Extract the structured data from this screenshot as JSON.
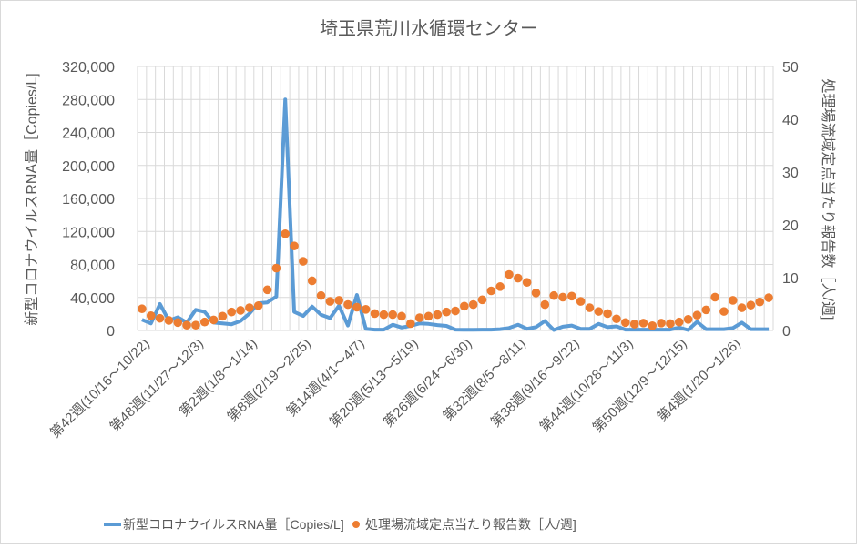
{
  "chart_data": {
    "type": "line",
    "title": "埼玉県荒川水循環センター",
    "ylabel": "新型コロナウイルスRNA量［Copies/L]",
    "y2label": "処理場流域定点当たり報告数［人/週]",
    "ylim": [
      0,
      320000
    ],
    "y2lim": [
      0,
      50
    ],
    "yticks": [
      "0",
      "40,000",
      "80,000",
      "120,000",
      "160,000",
      "200,000",
      "240,000",
      "280,000",
      "320,000"
    ],
    "y2ticks": [
      "0",
      "10",
      "20",
      "30",
      "40",
      "50"
    ],
    "grid": true,
    "legend_position": "bottom",
    "categories": [
      "第42週(10/16～10/22)",
      "",
      "",
      "",
      "",
      "",
      "第48週(11/27～12/3)",
      "",
      "",
      "",
      "",
      "",
      "第2週(1/8～1/14)",
      "",
      "",
      "",
      "",
      "",
      "第8週(2/19～2/25)",
      "",
      "",
      "",
      "",
      "",
      "第14週(4/1～4/7)",
      "",
      "",
      "",
      "",
      "",
      "第20週(5/13～5/19)",
      "",
      "",
      "",
      "",
      "",
      "第26週(6/24～6/30)",
      "",
      "",
      "",
      "",
      "",
      "第32週(8/5～8/11)",
      "",
      "",
      "",
      "",
      "",
      "第38週(9/16～9/22)",
      "",
      "",
      "",
      "",
      "",
      "第44週(10/28～11/3)",
      "",
      "",
      "",
      "",
      "",
      "第50週(12/9～12/15)",
      "",
      "",
      "",
      "",
      "",
      "第4週(1/20～1/26)",
      "",
      "",
      "",
      ""
    ],
    "series": [
      {
        "name": "新型コロナウイルスRNA量［Copies/L]",
        "type": "line",
        "axis": "left",
        "color": "#5b9bd5",
        "values": [
          13000,
          8500,
          32000,
          12000,
          16000,
          9500,
          25000,
          22500,
          9500,
          8500,
          7500,
          11500,
          20500,
          33000,
          34000,
          41000,
          280000,
          22500,
          17500,
          29000,
          19000,
          15000,
          30000,
          6000,
          43000,
          2000,
          1000,
          1000,
          7000,
          3500,
          5500,
          8500,
          8000,
          6500,
          5500,
          1000,
          800,
          800,
          1000,
          1000,
          1500,
          3000,
          7000,
          2000,
          4000,
          11500,
          500,
          4500,
          6000,
          2000,
          2000,
          8000,
          4000,
          5000,
          1000,
          1000,
          1000,
          1000,
          1000,
          1000,
          3500,
          500,
          10500,
          1500,
          1500,
          1500,
          3000,
          9500,
          1500,
          1500,
          1500
        ]
      },
      {
        "name": "処理場流域定点当たり報告数［人/週]",
        "type": "scatter",
        "axis": "right",
        "color": "#ed7d31",
        "values": [
          4.1,
          2.8,
          2.3,
          1.9,
          1.5,
          1.0,
          1.0,
          1.6,
          2.0,
          2.7,
          3.5,
          3.8,
          4.3,
          4.7,
          7.7,
          11.8,
          18.3,
          16.0,
          13.1,
          9.4,
          6.6,
          5.5,
          5.7,
          4.9,
          4.4,
          4.0,
          3.2,
          3.0,
          3.0,
          2.7,
          1.3,
          2.4,
          2.7,
          3.0,
          3.5,
          3.7,
          4.6,
          4.9,
          5.8,
          7.5,
          8.3,
          10.6,
          9.9,
          9.1,
          7.1,
          4.9,
          6.6,
          6.3,
          6.5,
          5.5,
          4.3,
          3.6,
          3.2,
          2.2,
          1.5,
          1.2,
          1.4,
          0.9,
          1.4,
          1.3,
          1.6,
          2.1,
          2.9,
          3.9,
          6.3,
          3.6,
          5.7,
          4.3,
          4.8,
          5.4,
          6.2
        ]
      }
    ]
  }
}
